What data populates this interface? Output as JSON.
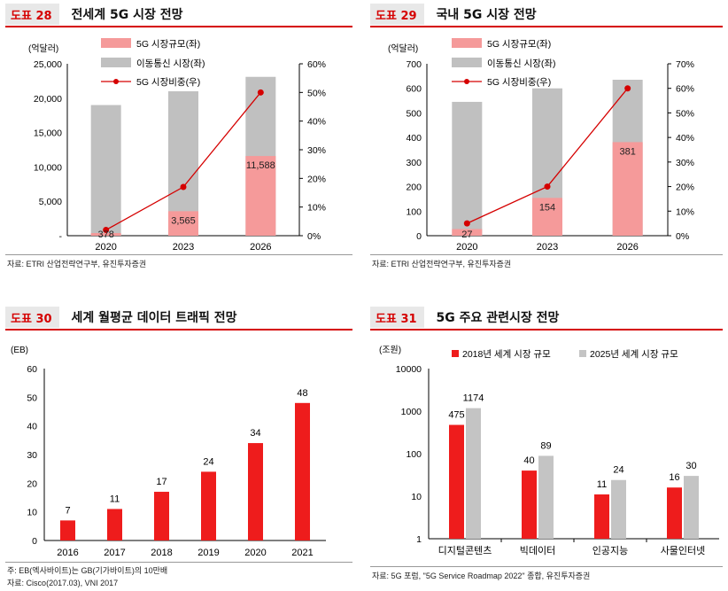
{
  "charts": [
    {
      "id": "p28",
      "num": "도표 28",
      "title": "전세계 5G 시장 전망",
      "source": "자료: ETRI 산업전략연구부, 유진투자증권",
      "chart_data": {
        "type": "bar",
        "stacked": true,
        "categories": [
          "2020",
          "2023",
          "2026"
        ],
        "unit_left": "(억달러)",
        "y_left_ticks": [
          "-",
          "5,000",
          "10,000",
          "15,000",
          "20,000",
          "25,000"
        ],
        "y_left_max": 25000,
        "y_right_ticks": [
          "0%",
          "10%",
          "20%",
          "30%",
          "40%",
          "50%",
          "60%"
        ],
        "y_right_max": 60,
        "series": [
          {
            "name": "5G 시장규모(좌)",
            "kind": "bar",
            "values": [
              378,
              3565,
              11588
            ],
            "labels": [
              "378",
              "3,565",
              "11,588"
            ]
          },
          {
            "name": "이동통신 시장(좌)",
            "kind": "bar-total",
            "values": [
              19000,
              21000,
              23100
            ]
          },
          {
            "name": "5G 시장비중(우)",
            "kind": "line",
            "values": [
              2,
              17,
              50
            ]
          }
        ]
      }
    },
    {
      "id": "p29",
      "num": "도표 29",
      "title": "국내 5G 시장 전망",
      "source": "자료: ETRI 산업전략연구부, 유진투자증권",
      "chart_data": {
        "type": "bar",
        "stacked": true,
        "categories": [
          "2020",
          "2023",
          "2026"
        ],
        "unit_left": "(억달러)",
        "y_left_ticks": [
          "0",
          "100",
          "200",
          "300",
          "400",
          "500",
          "600",
          "700"
        ],
        "y_left_max": 700,
        "y_right_ticks": [
          "0%",
          "10%",
          "20%",
          "30%",
          "40%",
          "50%",
          "60%",
          "70%"
        ],
        "y_right_max": 70,
        "series": [
          {
            "name": "5G 시장규모(좌)",
            "kind": "bar",
            "values": [
              27,
              154,
              381
            ],
            "labels": [
              "27",
              "154",
              "381"
            ]
          },
          {
            "name": "이동통신 시장(좌)",
            "kind": "bar-total",
            "values": [
              545,
              600,
              635
            ]
          },
          {
            "name": "5G 시장비중(우)",
            "kind": "line",
            "values": [
              5,
              20,
              60
            ]
          }
        ]
      }
    },
    {
      "id": "p30",
      "num": "도표 30",
      "title": "세계 월평균 데이터 트래픽 전망",
      "source": "자료: Cisco(2017.03), VNI 2017",
      "note": "주: EB(엑사바이트)는 GB(기가바이트)의 10만배",
      "chart_data": {
        "type": "bar",
        "categories": [
          "2016",
          "2017",
          "2018",
          "2019",
          "2020",
          "2021"
        ],
        "unit_left": "(EB)",
        "y_left_ticks": [
          "0",
          "10",
          "20",
          "30",
          "40",
          "50",
          "60"
        ],
        "y_left_max": 60,
        "series": [
          {
            "name": "",
            "kind": "bar",
            "values": [
              7,
              11,
              17,
              24,
              34,
              48
            ],
            "labels": [
              "7",
              "11",
              "17",
              "24",
              "34",
              "48"
            ]
          }
        ]
      }
    },
    {
      "id": "p31",
      "num": "도표 31",
      "title": "5G 주요 관련시장 전망",
      "source": "자료: 5G 포럼, \"5G Service Roadmap 2022\" 종합, 유진투자증권",
      "chart_data": {
        "type": "bar",
        "log_scale": true,
        "categories": [
          "디지털콘텐츠",
          "빅데이터",
          "인공지능",
          "사물인터넷"
        ],
        "unit_left": "(조원)",
        "y_left_ticks": [
          "1",
          "10",
          "100",
          "1000",
          "10000"
        ],
        "series": [
          {
            "name": "2018년 세계 시장 규모",
            "kind": "bar",
            "values": [
              475,
              40,
              11,
              16
            ],
            "labels": [
              "475",
              "40",
              "11",
              "16"
            ]
          },
          {
            "name": "2025년 세계 시장 규모",
            "kind": "bar",
            "values": [
              1174,
              89,
              24,
              30
            ],
            "labels": [
              "1174",
              "89",
              "24",
              "30"
            ]
          }
        ]
      }
    }
  ],
  "colors": {
    "accent": "#d50000",
    "pink": "#f59a9a",
    "gray": "#c0c0c0",
    "red_bar": "#ee1c1c",
    "gray2": "#c4c4c4"
  }
}
